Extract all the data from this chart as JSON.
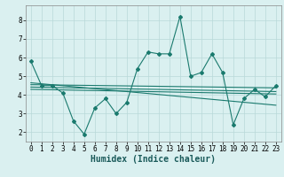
{
  "x": [
    0,
    1,
    2,
    3,
    4,
    5,
    6,
    7,
    8,
    9,
    10,
    11,
    12,
    13,
    14,
    15,
    16,
    17,
    18,
    19,
    20,
    21,
    22,
    23
  ],
  "y_main": [
    5.8,
    4.5,
    4.5,
    4.1,
    2.6,
    1.9,
    3.3,
    3.8,
    3.0,
    3.6,
    5.4,
    6.3,
    6.2,
    6.2,
    8.2,
    5.0,
    5.2,
    6.2,
    5.2,
    2.4,
    3.8,
    4.3,
    3.9,
    4.5
  ],
  "trend_lines": [
    {
      "x0": 0,
      "y0": 4.55,
      "x1": 23,
      "y1": 4.38
    },
    {
      "x0": 0,
      "y0": 4.42,
      "x1": 23,
      "y1": 4.18
    },
    {
      "x0": 0,
      "y0": 4.3,
      "x1": 23,
      "y1": 4.05
    },
    {
      "x0": 0,
      "y0": 4.65,
      "x1": 23,
      "y1": 3.45
    }
  ],
  "line_color": "#1a7a6e",
  "bg_color": "#daf0f0",
  "grid_color": "#b8d8d8",
  "xlabel": "Humidex (Indice chaleur)",
  "xlim": [
    -0.5,
    23.5
  ],
  "ylim": [
    1.5,
    8.8
  ],
  "yticks": [
    2,
    3,
    4,
    5,
    6,
    7,
    8
  ],
  "xticks": [
    0,
    1,
    2,
    3,
    4,
    5,
    6,
    7,
    8,
    9,
    10,
    11,
    12,
    13,
    14,
    15,
    16,
    17,
    18,
    19,
    20,
    21,
    22,
    23
  ],
  "tick_fontsize": 5.5,
  "xlabel_fontsize": 7.0,
  "marker": "D",
  "markersize": 2.0,
  "linewidth": 0.8
}
